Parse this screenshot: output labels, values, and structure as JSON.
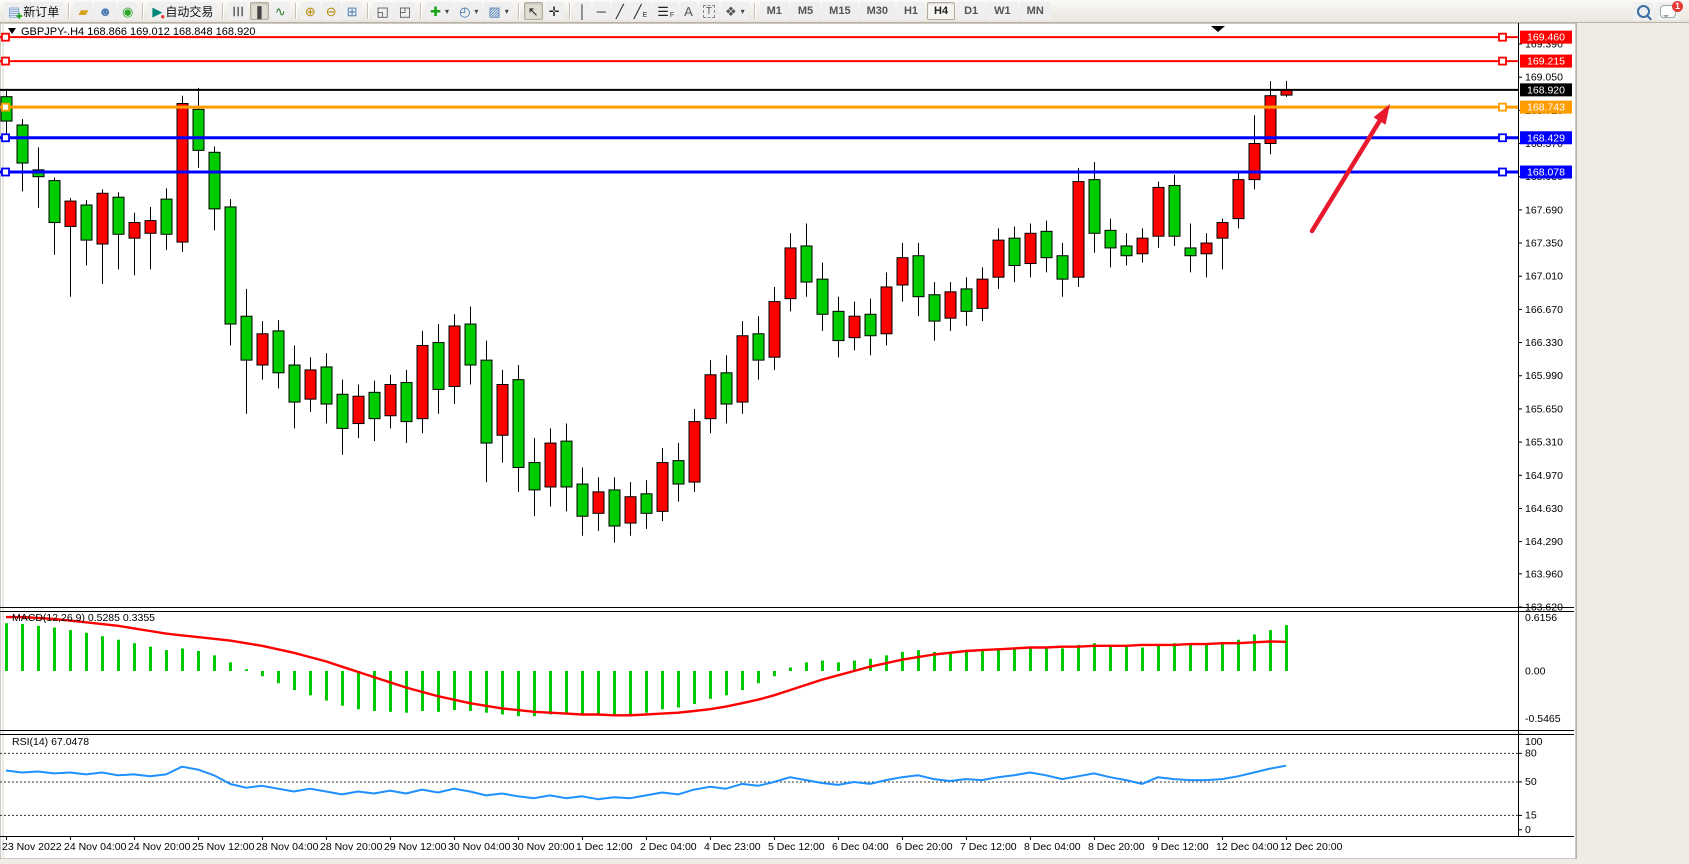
{
  "toolbar": {
    "groups": [
      {
        "items": [
          {
            "name": "new-order-button",
            "glyph": "▤",
            "color": "#6f9bd1",
            "glyph2": "✚",
            "color2": "#17a317",
            "label": "新订单"
          }
        ]
      },
      {
        "items": [
          {
            "name": "market-watch-icon",
            "glyph": "▰",
            "color": "#d9a520"
          },
          {
            "name": "data-window-icon",
            "glyph": "☻",
            "color": "#4b7bb5"
          },
          {
            "name": "signals-icon",
            "glyph": "◉",
            "color": "#2aa52a"
          }
        ]
      },
      {
        "items": [
          {
            "name": "autotrading-button",
            "glyph": "▶",
            "color": "#00897b",
            "glyph2": "●",
            "color2": "#e53935",
            "label": "自动交易"
          }
        ]
      },
      {
        "items": [
          {
            "name": "bar-chart-button",
            "glyph": "☰",
            "color": "#444",
            "rot": true
          },
          {
            "name": "candlestick-chart-button",
            "glyph": "❚",
            "color": "#444",
            "active": true
          },
          {
            "name": "line-chart-button",
            "glyph": "∿",
            "color": "#2a7d2a"
          }
        ]
      },
      {
        "items": [
          {
            "name": "zoom-in-button",
            "glyph": "⊕",
            "color": "#b58900"
          },
          {
            "name": "zoom-out-button",
            "glyph": "⊖",
            "color": "#b58900"
          },
          {
            "name": "tile-windows-button",
            "glyph": "⊞",
            "color": "#4b7bb5"
          }
        ]
      },
      {
        "items": [
          {
            "name": "arrange-charts-button",
            "glyph": "◱",
            "color": "#444"
          },
          {
            "name": "cascade-charts-button",
            "glyph": "◰",
            "color": "#444"
          }
        ]
      },
      {
        "items": [
          {
            "name": "add-indicator-button",
            "glyph": "✚",
            "color": "#17a317",
            "caret": true
          },
          {
            "name": "period-button",
            "glyph": "◴",
            "color": "#3a6ea5",
            "caret": true
          },
          {
            "name": "template-button",
            "glyph": "▨",
            "color": "#4b7bb5",
            "caret": true
          }
        ]
      },
      {
        "items": [
          {
            "name": "cursor-button",
            "glyph": "↖",
            "color": "#222",
            "active": true
          },
          {
            "name": "crosshair-button",
            "glyph": "✛",
            "color": "#222"
          }
        ]
      },
      {
        "items": [
          {
            "name": "vertical-line-button",
            "glyph": "│",
            "color": "#222"
          },
          {
            "name": "horizontal-line-button",
            "glyph": "─",
            "color": "#222"
          },
          {
            "name": "trendline-button",
            "glyph": "╱",
            "color": "#222"
          },
          {
            "name": "equidistant-channel-button",
            "glyph": "╱",
            "color": "#222",
            "sub": "E"
          },
          {
            "name": "fibonacci-button",
            "glyph": "☰",
            "color": "#222",
            "sub": "F"
          },
          {
            "name": "text-button",
            "glyph": "A",
            "color": "#555"
          },
          {
            "name": "text-label-button",
            "glyph": "T",
            "color": "#555",
            "boxed": true
          },
          {
            "name": "arrows-button",
            "glyph": "❖",
            "color": "#555",
            "caret": true
          }
        ]
      }
    ],
    "timeframes": [
      "M1",
      "M5",
      "M15",
      "M30",
      "H1",
      "H4",
      "D1",
      "W1",
      "MN"
    ],
    "active_timeframe": "H4",
    "right": {
      "search_button": "search",
      "notifications_button": "chat",
      "notification_badge": "1"
    }
  },
  "chart": {
    "title": "GBPJPY-.H4  168.866 169.012 168.848 168.920",
    "symbol": "GBPJPY-",
    "timeframe": "H4",
    "ohlc_display": {
      "open": "168.866",
      "high": "169.012",
      "low": "168.848",
      "close": "168.920"
    },
    "price_axis_ticks": [
      "169.390",
      "169.050",
      "168.710",
      "168.370",
      "168.030",
      "167.690",
      "167.350",
      "167.010",
      "166.670",
      "166.330",
      "165.990",
      "165.650",
      "165.310",
      "164.970",
      "164.630",
      "164.290",
      "163.960",
      "163.620"
    ],
    "hlines": [
      {
        "price": 169.46,
        "label": "169.460",
        "color": "#ff0000",
        "width": 2,
        "handles": true
      },
      {
        "price": 169.215,
        "label": "169.215",
        "color": "#ff0000",
        "width": 2,
        "handles": true
      },
      {
        "price": 168.743,
        "label": "168.743",
        "color": "#ff9c00",
        "width": 3,
        "handles": true
      },
      {
        "price": 168.429,
        "label": "168.429",
        "color": "#0000ff",
        "width": 3,
        "handles": true
      },
      {
        "price": 168.078,
        "label": "168.078",
        "color": "#0000ff",
        "width": 3,
        "handles": true
      }
    ],
    "current_price_line": {
      "price": 168.92,
      "label": "168.920",
      "color": "#000000",
      "width": 2
    },
    "colors": {
      "bull_candle": "#ff0000",
      "bear_candle": "#00cc00",
      "wick": "#000000",
      "macd_histogram": "#00c800",
      "macd_signal": "#ff0000",
      "rsi_line": "#1e90ff",
      "arrow": "#e8192c",
      "background": "#ffffff"
    }
  },
  "chart_data": {
    "type": "candlestick",
    "title": "GBPJPY- H4 candlestick chart with MACD and RSI",
    "x_dates": [
      "23 Nov 2022",
      "24 Nov 04:00",
      "24 Nov 20:00",
      "25 Nov 12:00",
      "28 Nov 04:00",
      "28 Nov 20:00",
      "29 Nov 12:00",
      "30 Nov 04:00",
      "30 Nov 20:00",
      "1 Dec 12:00",
      "2 Dec 04:00",
      "4 Dec 23:00",
      "5 Dec 12:00",
      "6 Dec 04:00",
      "6 Dec 20:00",
      "7 Dec 12:00",
      "8 Dec 04:00",
      "8 Dec 20:00",
      "9 Dec 12:00",
      "12 Dec 04:00",
      "12 Dec 20:00"
    ],
    "date_label_every_n_bars": 4,
    "price_range": [
      163.62,
      169.39
    ],
    "price_tick_step": 0.34,
    "candles_ohlc": [
      [
        168.85,
        168.93,
        168.42,
        168.6
      ],
      [
        168.56,
        168.62,
        167.88,
        168.17
      ],
      [
        168.1,
        168.33,
        167.71,
        168.03
      ],
      [
        167.99,
        168.02,
        167.23,
        167.56
      ],
      [
        167.52,
        167.81,
        166.8,
        167.78
      ],
      [
        167.74,
        167.79,
        167.12,
        167.38
      ],
      [
        167.34,
        167.9,
        166.93,
        167.86
      ],
      [
        167.82,
        167.87,
        167.08,
        167.44
      ],
      [
        167.4,
        167.66,
        167.02,
        167.56
      ],
      [
        167.45,
        167.72,
        167.08,
        167.58
      ],
      [
        167.8,
        167.91,
        167.28,
        167.44
      ],
      [
        167.36,
        168.86,
        167.26,
        168.78
      ],
      [
        168.72,
        168.94,
        168.12,
        168.3
      ],
      [
        168.28,
        168.34,
        167.48,
        167.7
      ],
      [
        167.72,
        167.8,
        166.3,
        166.52
      ],
      [
        166.6,
        166.88,
        165.6,
        166.15
      ],
      [
        166.1,
        166.55,
        165.95,
        166.42
      ],
      [
        166.45,
        166.56,
        165.86,
        166.02
      ],
      [
        166.1,
        166.3,
        165.45,
        165.72
      ],
      [
        165.75,
        166.18,
        165.62,
        166.05
      ],
      [
        166.08,
        166.22,
        165.5,
        165.7
      ],
      [
        165.8,
        165.95,
        165.18,
        165.45
      ],
      [
        165.5,
        165.9,
        165.35,
        165.78
      ],
      [
        165.82,
        165.94,
        165.32,
        165.55
      ],
      [
        165.58,
        166.0,
        165.45,
        165.9
      ],
      [
        165.92,
        166.05,
        165.3,
        165.52
      ],
      [
        165.55,
        166.45,
        165.4,
        166.3
      ],
      [
        166.33,
        166.52,
        165.6,
        165.85
      ],
      [
        165.88,
        166.62,
        165.7,
        166.5
      ],
      [
        166.52,
        166.7,
        165.9,
        166.1
      ],
      [
        166.15,
        166.35,
        164.9,
        165.3
      ],
      [
        165.38,
        166.05,
        165.1,
        165.9
      ],
      [
        165.95,
        166.1,
        164.8,
        165.05
      ],
      [
        165.1,
        165.35,
        164.55,
        164.82
      ],
      [
        164.85,
        165.45,
        164.65,
        165.3
      ],
      [
        165.32,
        165.5,
        164.6,
        164.85
      ],
      [
        164.88,
        165.05,
        164.35,
        164.55
      ],
      [
        164.58,
        164.95,
        164.4,
        164.8
      ],
      [
        164.82,
        164.95,
        164.28,
        164.45
      ],
      [
        164.48,
        164.9,
        164.35,
        164.75
      ],
      [
        164.78,
        164.92,
        164.42,
        164.58
      ],
      [
        164.6,
        165.25,
        164.5,
        165.1
      ],
      [
        165.12,
        165.3,
        164.7,
        164.88
      ],
      [
        164.9,
        165.65,
        164.8,
        165.52
      ],
      [
        165.55,
        166.15,
        165.4,
        166.0
      ],
      [
        166.02,
        166.2,
        165.5,
        165.7
      ],
      [
        165.72,
        166.55,
        165.6,
        166.4
      ],
      [
        166.42,
        166.6,
        165.95,
        166.15
      ],
      [
        166.18,
        166.9,
        166.05,
        166.75
      ],
      [
        166.78,
        167.45,
        166.65,
        167.3
      ],
      [
        167.32,
        167.55,
        166.8,
        166.95
      ],
      [
        166.98,
        167.15,
        166.45,
        166.62
      ],
      [
        166.65,
        166.8,
        166.18,
        166.35
      ],
      [
        166.38,
        166.75,
        166.25,
        166.6
      ],
      [
        166.62,
        166.78,
        166.2,
        166.4
      ],
      [
        166.42,
        167.05,
        166.3,
        166.9
      ],
      [
        166.92,
        167.35,
        166.75,
        167.2
      ],
      [
        167.22,
        167.35,
        166.6,
        166.8
      ],
      [
        166.82,
        166.95,
        166.35,
        166.55
      ],
      [
        166.58,
        166.95,
        166.45,
        166.85
      ],
      [
        166.88,
        167.0,
        166.5,
        166.65
      ],
      [
        166.68,
        167.1,
        166.55,
        166.98
      ],
      [
        167.0,
        167.5,
        166.88,
        167.38
      ],
      [
        167.4,
        167.52,
        166.95,
        167.12
      ],
      [
        167.14,
        167.55,
        167.0,
        167.45
      ],
      [
        167.47,
        167.58,
        167.05,
        167.2
      ],
      [
        167.22,
        167.35,
        166.8,
        166.98
      ],
      [
        167.0,
        168.12,
        166.9,
        167.98
      ],
      [
        168.0,
        168.18,
        167.25,
        167.45
      ],
      [
        167.48,
        167.6,
        167.1,
        167.3
      ],
      [
        167.32,
        167.45,
        167.12,
        167.22
      ],
      [
        167.24,
        167.5,
        167.15,
        167.4
      ],
      [
        167.42,
        167.98,
        167.3,
        167.92
      ],
      [
        167.94,
        168.05,
        167.32,
        167.42
      ],
      [
        167.3,
        167.55,
        167.05,
        167.22
      ],
      [
        167.24,
        167.45,
        167.0,
        167.35
      ],
      [
        167.4,
        167.6,
        167.08,
        167.56
      ],
      [
        167.6,
        168.08,
        167.5,
        168.0
      ],
      [
        168.0,
        168.66,
        167.9,
        168.37
      ],
      [
        168.37,
        169.01,
        168.26,
        168.86
      ],
      [
        168.866,
        169.012,
        168.848,
        168.92
      ]
    ],
    "indicators": {
      "macd": {
        "label": "MACD(12,26,9) 0.5285 0.3355",
        "axis_labels": [
          "0.6156",
          "0.00",
          "-0.5465"
        ],
        "axis_values": [
          0.6156,
          0.0,
          -0.5465
        ],
        "histogram": [
          0.55,
          0.54,
          0.52,
          0.5,
          0.47,
          0.44,
          0.4,
          0.36,
          0.32,
          0.28,
          0.24,
          0.26,
          0.23,
          0.18,
          0.1,
          0.02,
          -0.06,
          -0.14,
          -0.22,
          -0.28,
          -0.34,
          -0.4,
          -0.44,
          -0.46,
          -0.47,
          -0.48,
          -0.46,
          -0.47,
          -0.45,
          -0.46,
          -0.48,
          -0.5,
          -0.52,
          -0.52,
          -0.5,
          -0.5,
          -0.51,
          -0.5,
          -0.52,
          -0.5,
          -0.48,
          -0.44,
          -0.42,
          -0.38,
          -0.32,
          -0.28,
          -0.22,
          -0.14,
          -0.06,
          0.04,
          0.1,
          0.12,
          0.1,
          0.12,
          0.14,
          0.18,
          0.22,
          0.24,
          0.22,
          0.22,
          0.23,
          0.24,
          0.26,
          0.27,
          0.28,
          0.28,
          0.26,
          0.3,
          0.32,
          0.3,
          0.28,
          0.27,
          0.3,
          0.32,
          0.31,
          0.3,
          0.32,
          0.36,
          0.42,
          0.47,
          0.5285
        ],
        "signal": [
          0.62,
          0.62,
          0.61,
          0.6,
          0.58,
          0.56,
          0.54,
          0.52,
          0.49,
          0.46,
          0.43,
          0.41,
          0.39,
          0.37,
          0.35,
          0.32,
          0.29,
          0.25,
          0.21,
          0.16,
          0.11,
          0.05,
          -0.01,
          -0.07,
          -0.13,
          -0.19,
          -0.24,
          -0.29,
          -0.33,
          -0.37,
          -0.4,
          -0.43,
          -0.45,
          -0.47,
          -0.48,
          -0.49,
          -0.5,
          -0.5,
          -0.51,
          -0.51,
          -0.5,
          -0.49,
          -0.48,
          -0.46,
          -0.44,
          -0.41,
          -0.37,
          -0.33,
          -0.28,
          -0.22,
          -0.16,
          -0.1,
          -0.05,
          0.0,
          0.05,
          0.09,
          0.13,
          0.16,
          0.19,
          0.21,
          0.23,
          0.24,
          0.25,
          0.26,
          0.27,
          0.27,
          0.28,
          0.28,
          0.29,
          0.29,
          0.29,
          0.3,
          0.3,
          0.3,
          0.31,
          0.31,
          0.32,
          0.32,
          0.33,
          0.34,
          0.3355
        ]
      },
      "rsi": {
        "label": "RSI(14) 67.0478",
        "axis_labels": [
          "100",
          "80",
          "50",
          "15",
          "0"
        ],
        "axis_values": [
          100,
          80,
          50,
          15,
          0
        ],
        "dashed_levels": [
          80,
          50,
          15
        ],
        "values": [
          62,
          60,
          61,
          59,
          60,
          58,
          60,
          57,
          58,
          56,
          58,
          66,
          63,
          57,
          48,
          44,
          46,
          43,
          40,
          43,
          40,
          37,
          40,
          38,
          41,
          38,
          42,
          39,
          43,
          40,
          36,
          38,
          35,
          33,
          36,
          33,
          35,
          32,
          34,
          33,
          36,
          39,
          37,
          42,
          45,
          43,
          48,
          46,
          50,
          55,
          52,
          49,
          47,
          50,
          48,
          52,
          55,
          57,
          53,
          51,
          53,
          52,
          55,
          57,
          60,
          57,
          53,
          56,
          59,
          55,
          52,
          48,
          55,
          53,
          52,
          52,
          53,
          56,
          60,
          64,
          67.0478
        ]
      }
    }
  },
  "annotation_arrow": {
    "name": "buy-signal-arrow",
    "color": "#e8192c",
    "tail": [
      1312,
      208
    ],
    "tip": [
      1390,
      81
    ]
  }
}
